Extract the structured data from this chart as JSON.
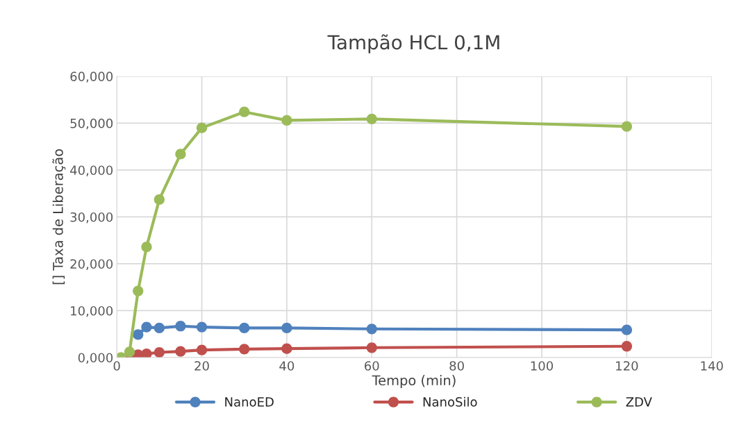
{
  "chart_data": {
    "type": "line",
    "title": "Tampão HCL 0,1M",
    "xlabel": "Tempo (min)",
    "ylabel": "[] Taxa de Liberação",
    "x": [
      1,
      3,
      5,
      7,
      10,
      15,
      20,
      30,
      40,
      60,
      120
    ],
    "series": [
      {
        "name": "NanoED",
        "color": "#4f81bd",
        "values": [
          null,
          null,
          4.9,
          6.5,
          6.3,
          6.7,
          6.5,
          6.3,
          6.3,
          6.1,
          5.9
        ]
      },
      {
        "name": "NanoSilo",
        "color": "#c0504d",
        "values": [
          null,
          0.0,
          0.6,
          0.8,
          1.1,
          1.3,
          1.6,
          1.8,
          1.9,
          2.1,
          2.4
        ]
      },
      {
        "name": "ZDV",
        "color": "#9bbb59",
        "values": [
          0.0,
          1.2,
          14.2,
          23.6,
          33.7,
          43.4,
          49.0,
          52.4,
          50.6,
          50.9,
          49.3
        ]
      }
    ],
    "xlim": [
      0,
      140
    ],
    "xticks": [
      0,
      20,
      40,
      60,
      80,
      100,
      120,
      140
    ],
    "ylim": [
      0,
      60
    ],
    "yticks": [
      {
        "value": 0,
        "label": "0,000"
      },
      {
        "value": 10,
        "label": "10,000"
      },
      {
        "value": 20,
        "label": "20,000"
      },
      {
        "value": 30,
        "label": "30,000"
      },
      {
        "value": 40,
        "label": "40,000"
      },
      {
        "value": 50,
        "label": "50,000"
      },
      {
        "value": 60,
        "label": "60,000"
      }
    ],
    "grid": true,
    "legend": "bottom",
    "marker": "circle",
    "line_style": "solid"
  }
}
